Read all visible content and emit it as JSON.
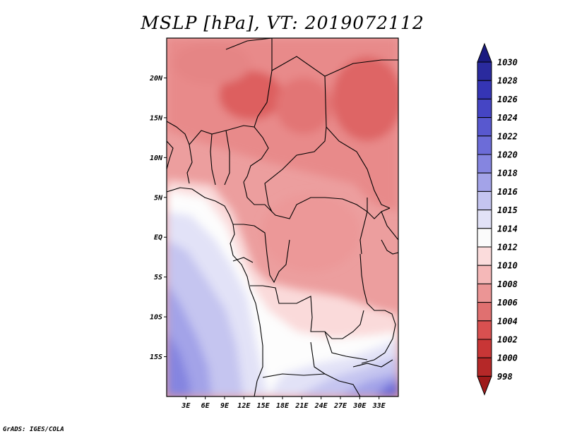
{
  "title": "MSLP [hPa], VT: 2019072112",
  "credit": "GrADS: IGES/COLA",
  "map": {
    "lon_range": [
      0,
      36
    ],
    "lat_range": [
      -20,
      25
    ],
    "lat_labels": [
      "20N",
      "15N",
      "10N",
      "5N",
      "EQ",
      "5S",
      "10S",
      "15S"
    ],
    "lat_values": [
      20,
      15,
      10,
      5,
      0,
      -5,
      -10,
      -15
    ],
    "lon_labels": [
      "3E",
      "6E",
      "9E",
      "12E",
      "15E",
      "18E",
      "21E",
      "24E",
      "27E",
      "30E",
      "33E"
    ],
    "lon_values": [
      3,
      6,
      9,
      12,
      15,
      18,
      21,
      24,
      27,
      30,
      33
    ]
  },
  "colorbar": {
    "levels": [
      "1030",
      "1028",
      "1026",
      "1024",
      "1022",
      "1020",
      "1018",
      "1016",
      "1015",
      "1014",
      "1012",
      "1010",
      "1008",
      "1006",
      "1004",
      "1002",
      "1000",
      "998"
    ],
    "colors": [
      "#1a1a80",
      "#2a2a9e",
      "#3535b5",
      "#4545c4",
      "#5858cf",
      "#6c6cd8",
      "#8585e0",
      "#a3a3e8",
      "#c5c5f0",
      "#e2e2f7",
      "#fbfbfb",
      "#fbdcdc",
      "#f5b8b8",
      "#eb9595",
      "#e07070",
      "#d85050",
      "#c83636",
      "#b52828",
      "#9e1a1a"
    ]
  }
}
